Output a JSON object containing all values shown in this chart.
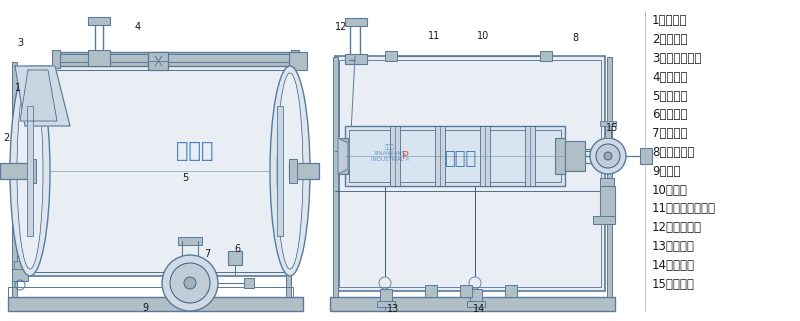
{
  "bg_color": "#ffffff",
  "line_color": "#5a7a9a",
  "dark_line": "#3a5a7a",
  "label_color": "#1a1a1a",
  "blue_text": "#1a5fa8",
  "red_text": "#cc2200",
  "legend_items": [
    "1、固定架",
    "2、溢流口",
    "3、蒸汽喷射泵",
    "4、止回阀",
    "5、缓冲罐",
    "6、排污口",
    "7、离心泵",
    "8、系统球阀",
    "9、底架",
    "10、水箱",
    "11、水喷射真空泵",
    "12、蒸汽进口",
    "13、放净口",
    "14、放净口",
    "15、补水口"
  ],
  "num_labels": [
    [
      18,
      233,
      "1"
    ],
    [
      6,
      183,
      "2"
    ],
    [
      20,
      278,
      "3"
    ],
    [
      138,
      294,
      "4"
    ],
    [
      185,
      143,
      "5"
    ],
    [
      237,
      72,
      "6"
    ],
    [
      207,
      67,
      "7"
    ],
    [
      575,
      283,
      "8"
    ],
    [
      145,
      13,
      "9"
    ],
    [
      483,
      285,
      "10"
    ],
    [
      434,
      285,
      "11"
    ],
    [
      341,
      294,
      "12"
    ],
    [
      393,
      12,
      "13"
    ],
    [
      479,
      12,
      "14"
    ],
    [
      612,
      193,
      "15"
    ]
  ]
}
